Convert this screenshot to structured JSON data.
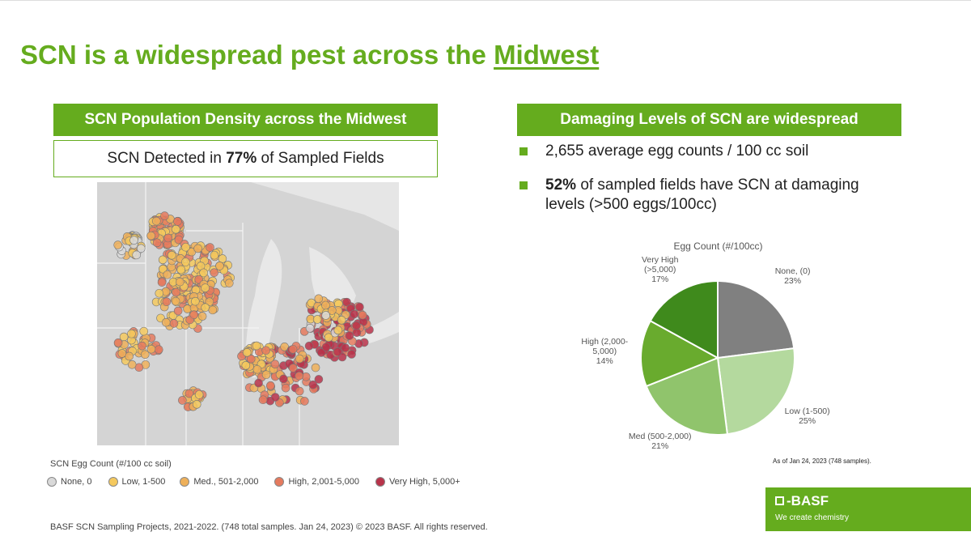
{
  "header": {
    "title": "SCN is a widespread pest across the",
    "title_link": "Midwest"
  },
  "left": {
    "heading": "SCN Population Density across the Midwest",
    "stat": [
      "SCN Detected in",
      "77%",
      "of Sampled Fields"
    ],
    "legend": {
      "title": "SCN Egg Count (#/100 cc soil)",
      "items": [
        {
          "label": "None, 0",
          "color": "#d9d9d9"
        },
        {
          "label": "Low, 1-500",
          "color": "#f5c95e"
        },
        {
          "label": "Med., 501-2,000",
          "color": "#eeb05a"
        },
        {
          "label": "High, 2,001-5,000",
          "color": "#e57a5e"
        },
        {
          "label": "Very High, 5,000+",
          "color": "#b8334a"
        }
      ]
    }
  },
  "right": {
    "heading": "Damaging Levels of SCN are widespread",
    "bullets": [
      [
        "2,655 average egg counts / 100 cc soil"
      ],
      [
        "52%",
        "of sampled fields have SCN at damaging levels (>500 eggs/100cc)"
      ]
    ]
  },
  "chart_data": {
    "type": "pie",
    "title": "Egg Count (#/100cc)",
    "categories": [
      "None, (0)",
      "Low (1-500)",
      "Med (500-2,000)",
      "High (2,000-5,000)",
      "Very High (>5,000)"
    ],
    "values": [
      23,
      25,
      21,
      14,
      17
    ],
    "value_labels": [
      "23%",
      "25%",
      "21%",
      "14%",
      "17%"
    ],
    "colors": [
      "#808080",
      "#b4d99e",
      "#90c46c",
      "#69ab2e",
      "#3f8a1c"
    ],
    "note": "As of Jan 24, 2023 (748 samples)."
  },
  "footer": "BASF SCN Sampling Projects, 2021-2022.  (748 total samples. Jan 24, 2023) © 2023 BASF. All rights reserved.",
  "logo": {
    "name": "BASF",
    "tagline": "We create chemistry"
  }
}
